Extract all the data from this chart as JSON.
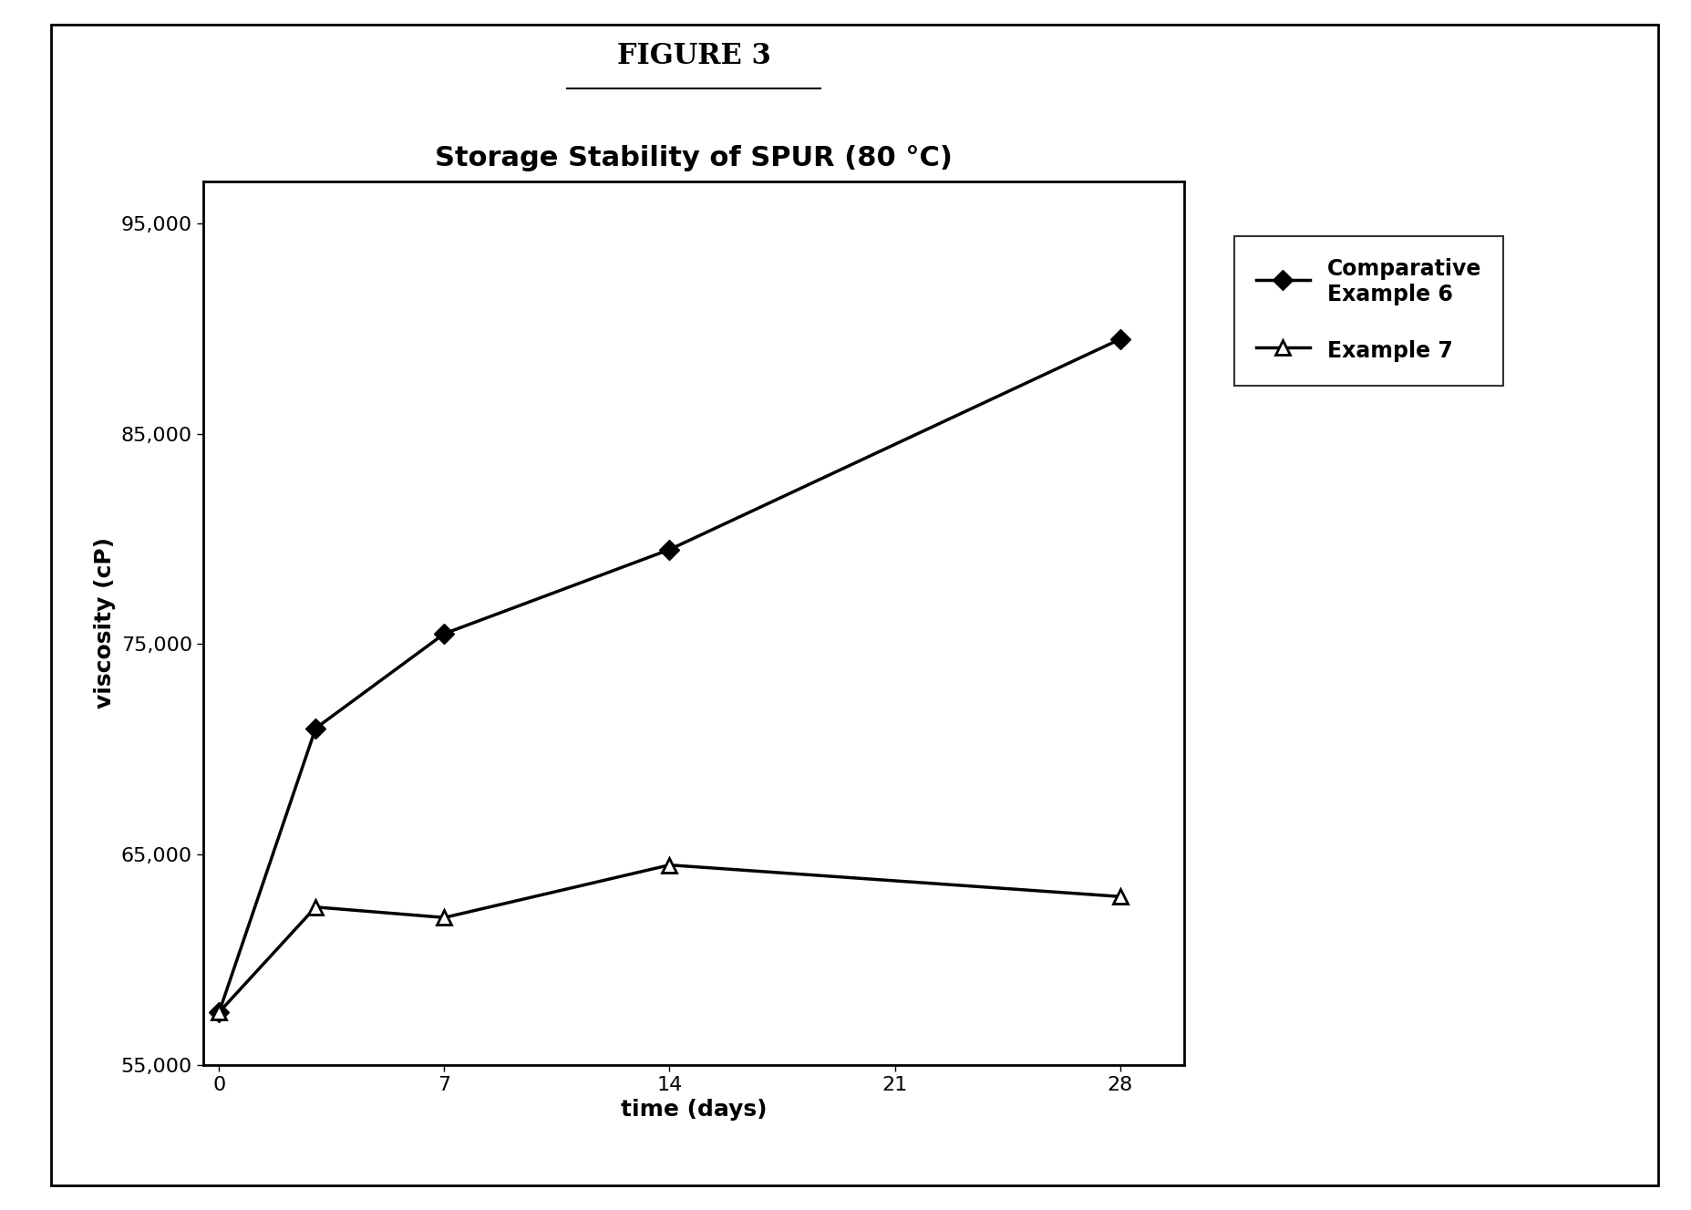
{
  "title": "Storage Stability of SPUR (80 °C)",
  "figure_label": "FIGURE 3",
  "xlabel": "time (days)",
  "ylabel": "viscosity (cP)",
  "ylim": [
    55000,
    97000
  ],
  "xlim": [
    -0.5,
    30
  ],
  "yticks": [
    55000,
    65000,
    75000,
    85000,
    95000
  ],
  "ytick_labels": [
    "55,000",
    "65,000",
    "75,000",
    "85,000",
    "95,000"
  ],
  "xticks": [
    0,
    7,
    14,
    21,
    28
  ],
  "xtick_labels": [
    "0",
    "7",
    "14",
    "21",
    "28"
  ],
  "series1_name": "Comparative\nExample 6",
  "series1_x": [
    0,
    3,
    7,
    14,
    28
  ],
  "series1_y": [
    57500,
    71000,
    75500,
    79500,
    89500
  ],
  "series1_color": "#000000",
  "series1_marker": "D",
  "series1_markersize": 11,
  "series2_name": "Example 7",
  "series2_x": [
    0,
    3,
    7,
    14,
    28
  ],
  "series2_y": [
    57500,
    62500,
    62000,
    64500,
    63000
  ],
  "series2_color": "#000000",
  "series2_marker": "^",
  "series2_markersize": 12,
  "background_color": "#ffffff",
  "title_fontsize": 22,
  "axis_label_fontsize": 18,
  "tick_fontsize": 16,
  "legend_fontsize": 17,
  "figure_label_fontsize": 22
}
